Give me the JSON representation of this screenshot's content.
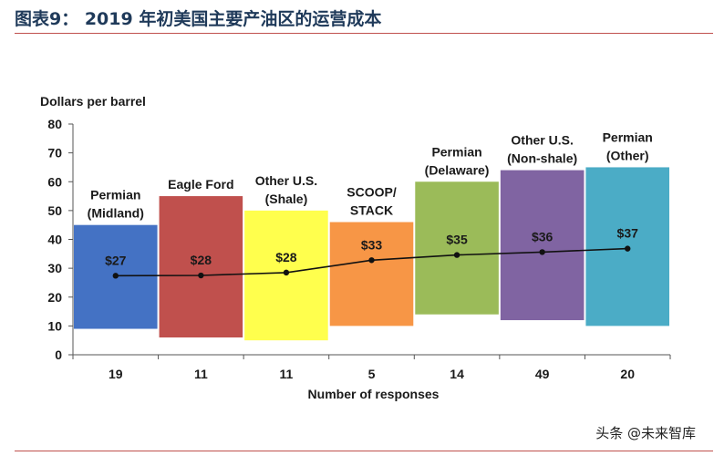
{
  "header": {
    "title": "图表9：  2019 年初美国主要产油区的运营成本"
  },
  "watermark": "头条 @未来智库",
  "chart_data": {
    "type": "bar",
    "ylabel": "Dollars per barrel",
    "xlabel": "Number of responses",
    "ylim": [
      0,
      80
    ],
    "yticks": [
      0,
      10,
      20,
      30,
      40,
      50,
      60,
      70,
      80
    ],
    "series": [
      {
        "name": "Permian (Midland)",
        "label_lines": [
          "Permian",
          "(Midland)"
        ],
        "low": 9,
        "high": 45,
        "avg": 27.4,
        "value_label": "$27",
        "responses": "19",
        "color": "#4472c4"
      },
      {
        "name": "Eagle Ford",
        "label_lines": [
          "Eagle Ford"
        ],
        "low": 6,
        "high": 55,
        "avg": 27.5,
        "value_label": "$28",
        "responses": "11",
        "color": "#c0504d"
      },
      {
        "name": "Other U.S. (Shale)",
        "label_lines": [
          "Other U.S.",
          "(Shale)"
        ],
        "low": 5,
        "high": 50,
        "avg": 28.5,
        "value_label": "$28",
        "responses": "11",
        "color": "#ffff4d"
      },
      {
        "name": "SCOOP/STACK",
        "label_lines": [
          "SCOOP/",
          "STACK"
        ],
        "low": 10,
        "high": 46,
        "avg": 32.8,
        "value_label": "$33",
        "responses": "5",
        "color": "#f79646"
      },
      {
        "name": "Permian (Delaware)",
        "label_lines": [
          "Permian",
          "(Delaware)"
        ],
        "low": 14,
        "high": 60,
        "avg": 34.6,
        "value_label": "$35",
        "responses": "14",
        "color": "#9bbb59"
      },
      {
        "name": "Other U.S. (Non-shale)",
        "label_lines": [
          "Other U.S.",
          "(Non-shale)"
        ],
        "low": 12,
        "high": 64,
        "avg": 35.6,
        "value_label": "$36",
        "responses": "49",
        "color": "#8064a2"
      },
      {
        "name": "Permian (Other)",
        "label_lines": [
          "Permian",
          "(Other)"
        ],
        "low": 10,
        "high": 65,
        "avg": 36.8,
        "value_label": "$37",
        "responses": "20",
        "color": "#4bacc6"
      }
    ]
  }
}
